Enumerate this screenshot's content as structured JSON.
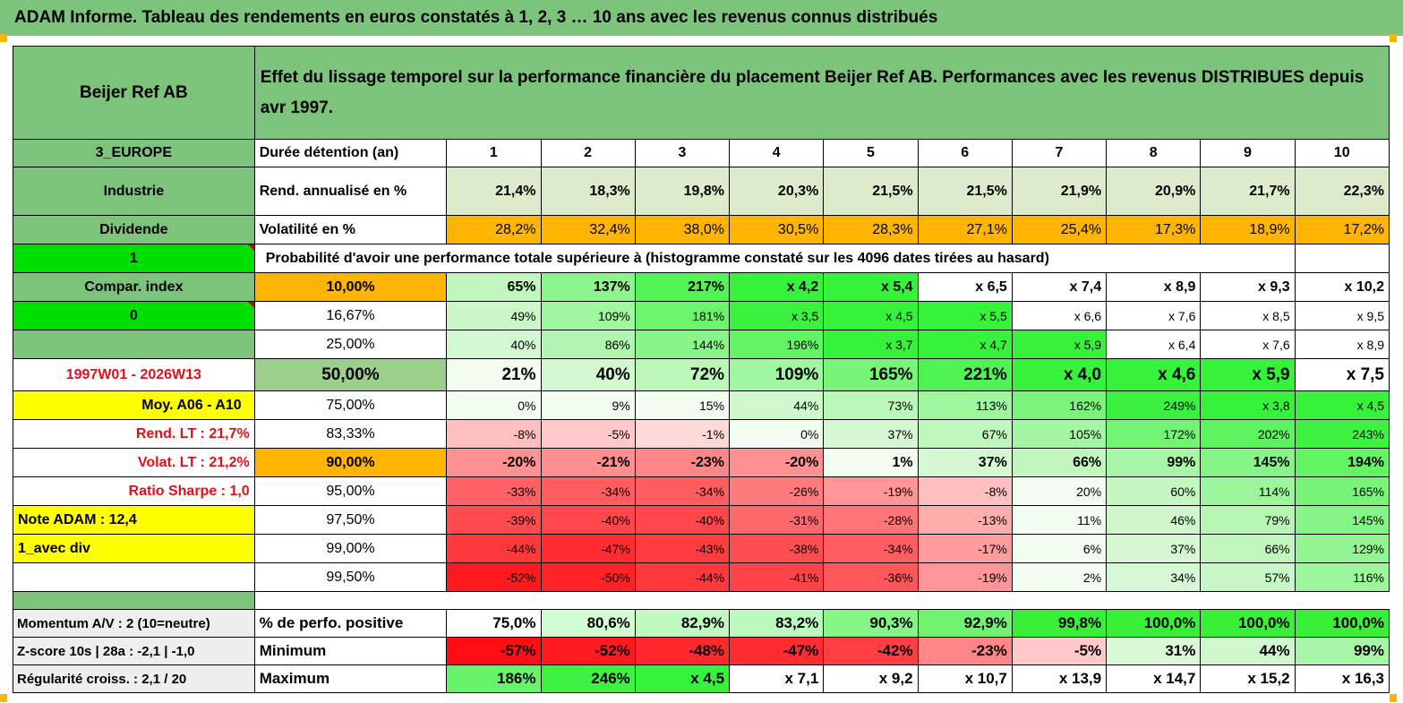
{
  "title": "ADAM Informe. Tableau des rendements en euros constatés à 1, 2, 3 … 10 ans avec les revenus connus distribués",
  "header": {
    "name": "Beijer Ref AB",
    "description": "Effet du lissage temporel sur la performance financière du placement Beijer Ref AB. Performances avec les revenus DISTRIBUES depuis avr 1997."
  },
  "colors": {
    "green_header": "#7cc47c",
    "yellow": "#ffff00",
    "orange": "#ffb400",
    "bright_green": "#00e000",
    "red_text": "#e0101a"
  },
  "side": {
    "region": "3_EUROPE",
    "sector": "Industrie",
    "dividend": "Dividende",
    "one": "1",
    "compar": "Compar. index",
    "zero": "0",
    "period": "1997W01 - 2026W13",
    "moy": "Moy. A06 - A10",
    "rend_lt": "Rend. LT :   21,7%",
    "volat_lt": "Volat. LT :   21,2%",
    "sharpe": "Ratio Sharpe :    1,0",
    "note": "Note ADAM : 12,4",
    "avec_div": "1_avec div"
  },
  "labels": {
    "duree": "Durée détention (an)",
    "rend": "Rend. annualisé en %",
    "vol": "Volatilité en %",
    "prob": "Probabilité d'avoir une performance totale supérieure à (histogramme constaté sur les 4096 dates tirées au hasard)"
  },
  "years": [
    "1",
    "2",
    "3",
    "4",
    "5",
    "6",
    "7",
    "8",
    "9",
    "10"
  ],
  "rend": [
    "21,4%",
    "18,3%",
    "19,8%",
    "20,3%",
    "21,5%",
    "21,5%",
    "21,9%",
    "20,9%",
    "21,7%",
    "22,3%"
  ],
  "vol": [
    "28,2%",
    "32,4%",
    "38,0%",
    "30,5%",
    "28,3%",
    "27,1%",
    "25,4%",
    "17,3%",
    "18,9%",
    "17,2%"
  ],
  "prob_rows": [
    {
      "p": "10,00%",
      "vals": [
        "65%",
        "137%",
        "217%",
        "x 4,2",
        "x 5,4",
        "x 6,5",
        "x 7,4",
        "x 8,9",
        "x 9,3",
        "x 10,2"
      ]
    },
    {
      "p": "16,67%",
      "vals": [
        "49%",
        "109%",
        "181%",
        "x 3,5",
        "x 4,5",
        "x 5,5",
        "x 6,6",
        "x 7,6",
        "x 8,5",
        "x 9,5"
      ]
    },
    {
      "p": "25,00%",
      "vals": [
        "40%",
        "86%",
        "144%",
        "196%",
        "x 3,7",
        "x 4,7",
        "x 5,9",
        "x 6,4",
        "x 7,6",
        "x 8,9"
      ]
    },
    {
      "p": "50,00%",
      "vals": [
        "21%",
        "40%",
        "72%",
        "109%",
        "165%",
        "221%",
        "x 4,0",
        "x 4,6",
        "x 5,9",
        "x 7,5"
      ]
    },
    {
      "p": "75,00%",
      "vals": [
        "0%",
        "9%",
        "15%",
        "44%",
        "73%",
        "113%",
        "162%",
        "249%",
        "x 3,8",
        "x 4,5"
      ]
    },
    {
      "p": "83,33%",
      "vals": [
        "-8%",
        "-5%",
        "-1%",
        "0%",
        "37%",
        "67%",
        "105%",
        "172%",
        "202%",
        "243%"
      ]
    },
    {
      "p": "90,00%",
      "vals": [
        "-20%",
        "-21%",
        "-23%",
        "-20%",
        "1%",
        "37%",
        "66%",
        "99%",
        "145%",
        "194%"
      ]
    },
    {
      "p": "95,00%",
      "vals": [
        "-33%",
        "-34%",
        "-34%",
        "-26%",
        "-19%",
        "-8%",
        "20%",
        "60%",
        "114%",
        "165%"
      ]
    },
    {
      "p": "97,50%",
      "vals": [
        "-39%",
        "-40%",
        "-40%",
        "-31%",
        "-28%",
        "-13%",
        "11%",
        "46%",
        "79%",
        "145%"
      ]
    },
    {
      "p": "99,00%",
      "vals": [
        "-44%",
        "-47%",
        "-43%",
        "-38%",
        "-34%",
        "-17%",
        "6%",
        "37%",
        "66%",
        "129%"
      ]
    },
    {
      "p": "99,50%",
      "vals": [
        "-52%",
        "-50%",
        "-44%",
        "-41%",
        "-36%",
        "-19%",
        "2%",
        "34%",
        "57%",
        "116%"
      ]
    }
  ],
  "bottom": {
    "momentum": "Momentum A/V : 2 (10=neutre)",
    "zscore": "Z-score 10s | 28a : -2,1 | -1,0",
    "regularite": "Régularité croiss. : 2,1 / 20",
    "pos_label": "% de perfo. positive",
    "min_label": "Minimum",
    "max_label": "Maximum",
    "pos": [
      "75,0%",
      "80,6%",
      "82,9%",
      "83,2%",
      "90,3%",
      "92,9%",
      "99,8%",
      "100,0%",
      "100,0%",
      "100,0%"
    ],
    "min": [
      "-57%",
      "-52%",
      "-48%",
      "-47%",
      "-42%",
      "-23%",
      "-5%",
      "31%",
      "44%",
      "99%"
    ],
    "max": [
      "186%",
      "246%",
      "x 4,5",
      "x 7,1",
      "x 9,2",
      "x 10,7",
      "x 13,9",
      "x 14,7",
      "x 15,2",
      "x 16,3"
    ]
  }
}
